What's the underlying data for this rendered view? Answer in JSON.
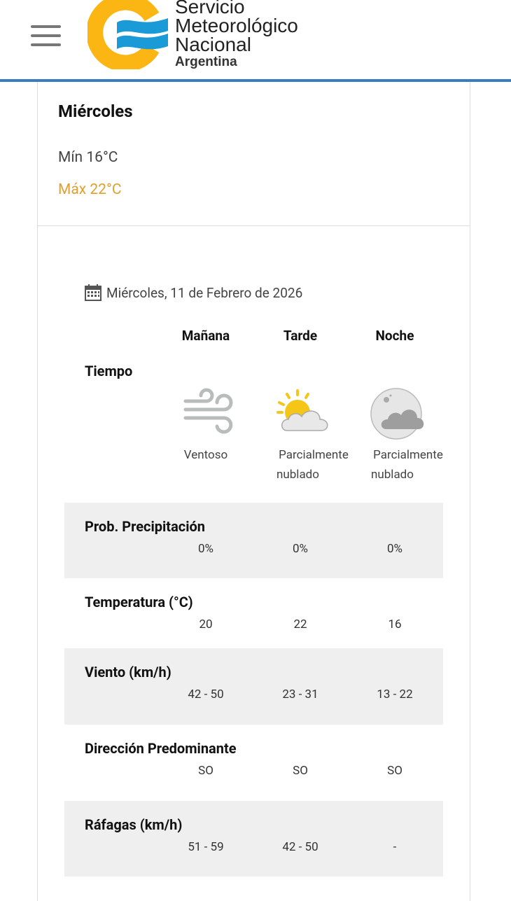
{
  "header": {
    "brand_line1": "Servicio",
    "brand_line2": "Meteorológico",
    "brand_line3": "Nacional",
    "brand_sub": "Argentina",
    "accent": "#3b7bbf"
  },
  "summary": {
    "day": "Miércoles",
    "min": "Mín 16°C",
    "max": "Máx 22°C",
    "max_color": "#e0a030"
  },
  "detail": {
    "date": "Miércoles, 11 de Febrero de 2026",
    "periods": [
      "Mañana",
      "Tarde",
      "Noche"
    ],
    "weather_label": "Tiempo",
    "weather": [
      {
        "icon": "wind-icon",
        "desc1": "Ventoso",
        "desc2": ""
      },
      {
        "icon": "partly-cloudy-day-icon",
        "desc1": "Parcialmente",
        "desc2": "nublado"
      },
      {
        "icon": "partly-cloudy-night-icon",
        "desc1": "Parcialmente",
        "desc2": "nublado"
      }
    ],
    "rows": [
      {
        "label": "Prob. Precipitación",
        "values": [
          "0%",
          "0%",
          "0%"
        ]
      },
      {
        "label": "Temperatura (°C)",
        "values": [
          "20",
          "22",
          "16"
        ]
      },
      {
        "label": "Viento (km/h)",
        "values": [
          "42 - 50",
          "23 - 31",
          "13 - 22"
        ]
      },
      {
        "label": "Dirección Predominante",
        "values": [
          "SO",
          "SO",
          "SO"
        ]
      },
      {
        "label": "Ráfagas (km/h)",
        "values": [
          "51 - 59",
          "42 - 50",
          "-"
        ]
      }
    ]
  }
}
